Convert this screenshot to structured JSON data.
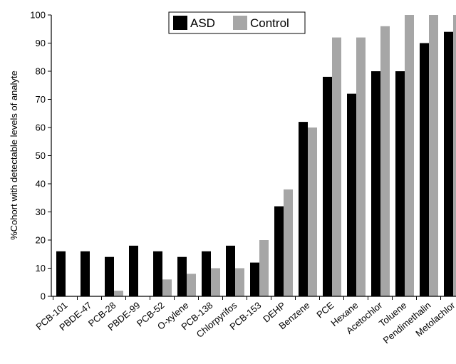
{
  "chart_data": {
    "type": "bar",
    "ylabel": "%Cohort with detectable levels of analyte",
    "ylim": [
      0,
      100
    ],
    "ytick_step": 10,
    "grid": false,
    "legend_position": "top-center",
    "categories": [
      "PCB-101",
      "PBDE-47",
      "PCB-28",
      "PBDE-99",
      "PCB-52",
      "O-xylene",
      "PCB-138",
      "Chlorpyrifos",
      "PCB-153",
      "DEHP",
      "Benzene",
      "PCE",
      "Hexane",
      "Acetochlor",
      "Toluene",
      "Pendimethalin",
      "Metolachlor"
    ],
    "series": [
      {
        "name": "ASD",
        "color": "#000000",
        "values": [
          16,
          16,
          14,
          18,
          16,
          14,
          16,
          18,
          12,
          32,
          62,
          78,
          72,
          80,
          80,
          90,
          94
        ]
      },
      {
        "name": "Control",
        "color": "#a6a6a6",
        "values": [
          0,
          0,
          2,
          0,
          6,
          8,
          10,
          10,
          20,
          38,
          60,
          92,
          92,
          96,
          100,
          100,
          100
        ]
      }
    ]
  }
}
